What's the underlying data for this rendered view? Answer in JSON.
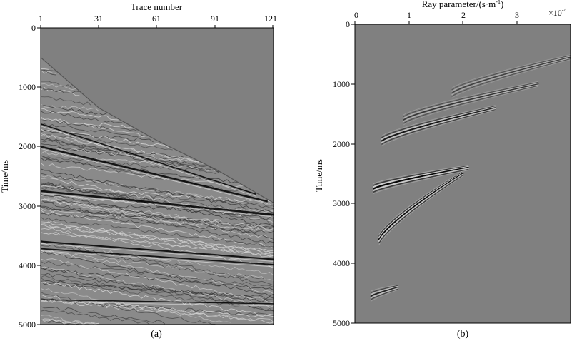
{
  "chart_data": [
    {
      "type": "heatmap",
      "subplot_label": "(a)",
      "xlabel": "Trace number",
      "ylabel": "Time/ms",
      "x_ticks": [
        "1",
        "31",
        "61",
        "91",
        "121"
      ],
      "y_ticks": [
        "0",
        "1000",
        "2000",
        "3000",
        "4000",
        "5000"
      ],
      "xlim": [
        1,
        121
      ],
      "ylim": [
        0,
        5000
      ],
      "x_axis_position": "top",
      "y_inverted": true,
      "colormap": "grayscale",
      "first_break": {
        "trace": [
          1,
          31,
          61,
          91,
          121
        ],
        "time_ms": [
          500,
          1350,
          1900,
          2380,
          2950
        ]
      },
      "events": [
        {
          "time_ms_at_trace1": 1620,
          "time_ms_at_trace121": 2900,
          "strength": 0.4
        },
        {
          "time_ms_at_trace1": 2000,
          "time_ms_at_trace121": 2950,
          "strength": 0.9
        },
        {
          "time_ms_at_trace1": 2750,
          "time_ms_at_trace121": 3150,
          "strength": 1.0
        },
        {
          "time_ms_at_trace1": 3600,
          "time_ms_at_trace121": 3900,
          "strength": 0.7
        },
        {
          "time_ms_at_trace1": 3720,
          "time_ms_at_trace121": 3990,
          "strength": 0.5
        },
        {
          "time_ms_at_trace1": 4580,
          "time_ms_at_trace121": 4650,
          "strength": 0.3
        }
      ]
    },
    {
      "type": "heatmap",
      "subplot_label": "(b)",
      "xlabel": "Ray parameter/(s·m",
      "xlabel_sup": "-1",
      "xlabel_tail": ")",
      "exponent_label": "×10",
      "exponent_sup": "-4",
      "ylabel": "Time/ms",
      "x_ticks": [
        "0",
        "1",
        "2",
        "3"
      ],
      "x_tick_values": [
        0,
        1,
        2,
        3
      ],
      "y_ticks": [
        "0",
        "1000",
        "2000",
        "3000",
        "4000",
        "5000"
      ],
      "xlim": [
        0,
        4
      ],
      "ylim": [
        0,
        5000
      ],
      "x_axis_position": "top",
      "y_inverted": true,
      "colormap": "grayscale",
      "events": [
        {
          "p_start": 0.3,
          "t_start": 4550,
          "p_end": 0.8,
          "t_end": 4400,
          "strength": 0.7
        },
        {
          "p_start": 0.45,
          "t_start": 3600,
          "p_end": 2.0,
          "t_end": 2500,
          "strength": 1.0
        },
        {
          "p_start": 0.35,
          "t_start": 2750,
          "p_end": 2.1,
          "t_end": 2400,
          "strength": 1.0
        },
        {
          "p_start": 0.5,
          "t_start": 1950,
          "p_end": 2.6,
          "t_end": 1400,
          "strength": 0.8
        },
        {
          "p_start": 0.9,
          "t_start": 1600,
          "p_end": 3.4,
          "t_end": 1000,
          "strength": 0.5
        },
        {
          "p_start": 1.8,
          "t_start": 1150,
          "p_end": 4.0,
          "t_end": 550,
          "strength": 0.4
        }
      ]
    }
  ]
}
